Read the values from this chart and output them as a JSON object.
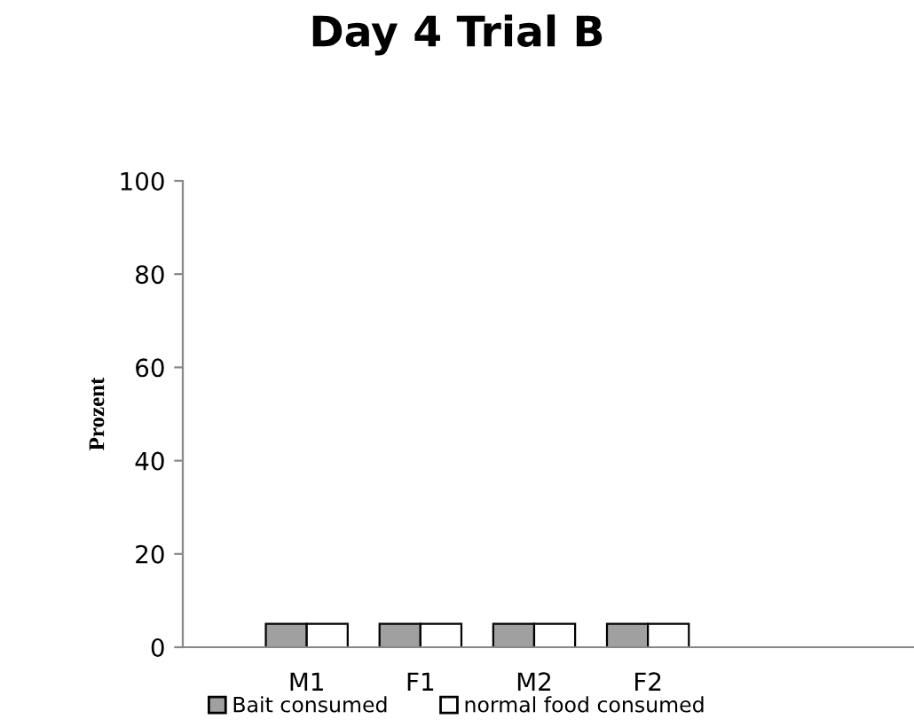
{
  "chart_data": {
    "type": "bar",
    "title": "Day 4 Trial B",
    "ylabel": "Prozent",
    "categories": [
      "M1",
      "F1",
      "M2",
      "F2"
    ],
    "series": [
      {
        "name": "Bait consumed",
        "color": "#a0a0a0",
        "values": [
          5,
          5,
          5,
          5
        ]
      },
      {
        "name": "normal food consumed",
        "color": "#ffffff",
        "values": [
          5,
          5,
          5,
          5
        ]
      }
    ],
    "ylim": [
      0,
      100
    ],
    "yticks": [
      0,
      20,
      40,
      60,
      80,
      100
    ],
    "grid": false,
    "legend": "bottom"
  }
}
